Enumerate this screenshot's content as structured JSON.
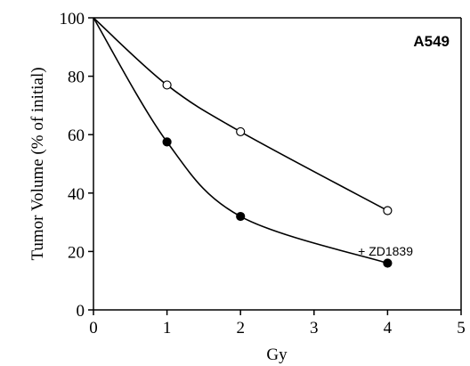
{
  "chart_data": {
    "type": "scatter",
    "title": "",
    "panel_label": "A549",
    "xlabel": "Gy",
    "ylabel": "Tumor Volume (% of initial)",
    "xlim": [
      0,
      5
    ],
    "ylim": [
      0,
      100
    ],
    "xticks": [
      "0",
      "1",
      "2",
      "3",
      "4",
      "5"
    ],
    "yticks": [
      "0",
      "20",
      "40",
      "60",
      "80",
      "100"
    ],
    "grid": false,
    "series": [
      {
        "marker": "open-circle",
        "x": [
          0,
          1,
          2,
          4
        ],
        "y": [
          100,
          77,
          61,
          34
        ]
      },
      {
        "name": "+ ZD1839",
        "marker": "filled-circle",
        "x": [
          0,
          1,
          2,
          4
        ],
        "y": [
          100,
          57.5,
          32,
          16
        ]
      }
    ]
  }
}
